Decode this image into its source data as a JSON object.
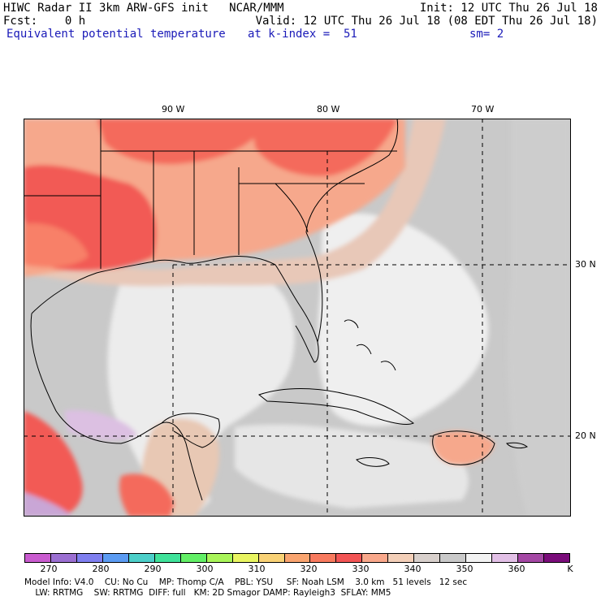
{
  "header": {
    "line1_left": "HIWC Radar II 3km ARW-GFS init   NCAR/MMM",
    "line1_right": "Init: 12 UTC Thu 26 Jul 18",
    "line2_left": "Fcst:    0 h",
    "line2_right": "Valid: 12 UTC Thu 26 Jul 18 (08 EDT Thu 26 Jul 18)",
    "line3_left": "Equivalent potential temperature",
    "line3_mid": "at k-index =  51",
    "line3_right": "sm= 2"
  },
  "map": {
    "lon_labels": [
      "90 W",
      "80 W",
      "70 W"
    ],
    "lat_labels": [
      "30 N",
      "20 N"
    ]
  },
  "colorbar": {
    "colors": [
      "#c95bcf",
      "#9b6fd2",
      "#7f7ff0",
      "#5b9bf2",
      "#4ccfc9",
      "#3fe29a",
      "#62ef66",
      "#a9f559",
      "#e9f561",
      "#f9d276",
      "#f9a46f",
      "#f87a5e",
      "#f25454",
      "#f9a88b",
      "#f3cfb8",
      "#d8d0cc",
      "#c9c9c9",
      "#f2f2f2",
      "#e2c0e6",
      "#a447a4",
      "#7a0c7a"
    ],
    "labels": [
      "270",
      "280",
      "290",
      "300",
      "310",
      "320",
      "330",
      "340",
      "350",
      "360"
    ],
    "unit": "K"
  },
  "footer": {
    "line1": "Model Info: V4.0    CU: No Cu    MP: Thomp C/A    PBL: YSU     SF: Noah LSM    3.0 km   51 levels   12 sec",
    "line2": "    LW: RRTMG    SW: RRTMG  DIFF: full   KM: 2D Smagor DAMP: Rayleigh3  SFLAY: MM5"
  }
}
